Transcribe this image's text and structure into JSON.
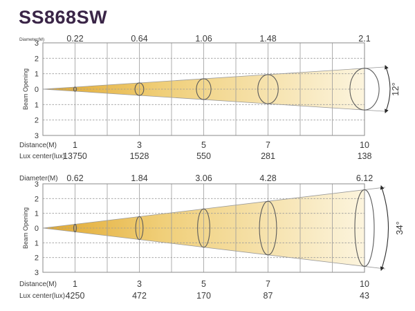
{
  "title": "SS868SW",
  "colors": {
    "title_text": "#3a2547",
    "beam_gradient_start": "#e1a82f",
    "beam_gradient_mid": "#f0cf79",
    "beam_gradient_end": "#fdf8e8",
    "grid_line": "#9a9a9a",
    "plot_border": "#8a8a8a",
    "ellipse_stroke": "#5a5a5a",
    "arrow": "#2a2a2a",
    "label_text": "#3a3a3a"
  },
  "chart_data": [
    {
      "type": "area",
      "subtype": "beam-cone-diagram",
      "beam_angle_deg": 12,
      "beam_angle_label": "12°",
      "labels": {
        "diameter": "Diameter(M)",
        "distance": "Distance(M)",
        "lux": "Lux center(lux)",
        "y_axis": "Beam Opening"
      },
      "x_range": [
        0,
        10
      ],
      "y_range": [
        -3,
        3
      ],
      "grid": true,
      "y_ticks": [
        "3",
        "2",
        "1",
        "0",
        "1",
        "2",
        "3"
      ],
      "distances_m": [
        1,
        3,
        5,
        7,
        10
      ],
      "distance_display": [
        "1",
        "3",
        "5",
        "7",
        "10"
      ],
      "diameters_m": [
        0.22,
        0.64,
        1.06,
        1.48,
        2.1
      ],
      "diameter_display": [
        "0.22",
        "0.64",
        "1.06",
        "1.48",
        "2.1"
      ],
      "lux_center_lux": [
        13750,
        1528,
        550,
        281,
        138
      ],
      "lux_display": [
        "13750",
        "1528",
        "550",
        "281",
        "138"
      ]
    },
    {
      "type": "area",
      "subtype": "beam-cone-diagram",
      "beam_angle_deg": 34,
      "beam_angle_label": "34°",
      "labels": {
        "diameter": "Diameter(M)",
        "distance": "Distance(M)",
        "lux": "Lux center(lux)",
        "y_axis": "Beam Opening"
      },
      "x_range": [
        0,
        10
      ],
      "y_range": [
        -3,
        3
      ],
      "grid": true,
      "y_ticks": [
        "3",
        "2",
        "1",
        "0",
        "1",
        "2",
        "3"
      ],
      "distances_m": [
        1,
        3,
        5,
        7,
        10
      ],
      "distance_display": [
        "1",
        "3",
        "5",
        "7",
        "10"
      ],
      "diameters_m": [
        0.62,
        1.84,
        3.06,
        4.28,
        6.12
      ],
      "diameter_display": [
        "0.62",
        "1.84",
        "3.06",
        "4.28",
        "6.12"
      ],
      "lux_center_lux": [
        4250,
        472,
        170,
        87,
        43
      ],
      "lux_display": [
        "4250",
        "472",
        "170",
        "87",
        "43"
      ]
    }
  ]
}
